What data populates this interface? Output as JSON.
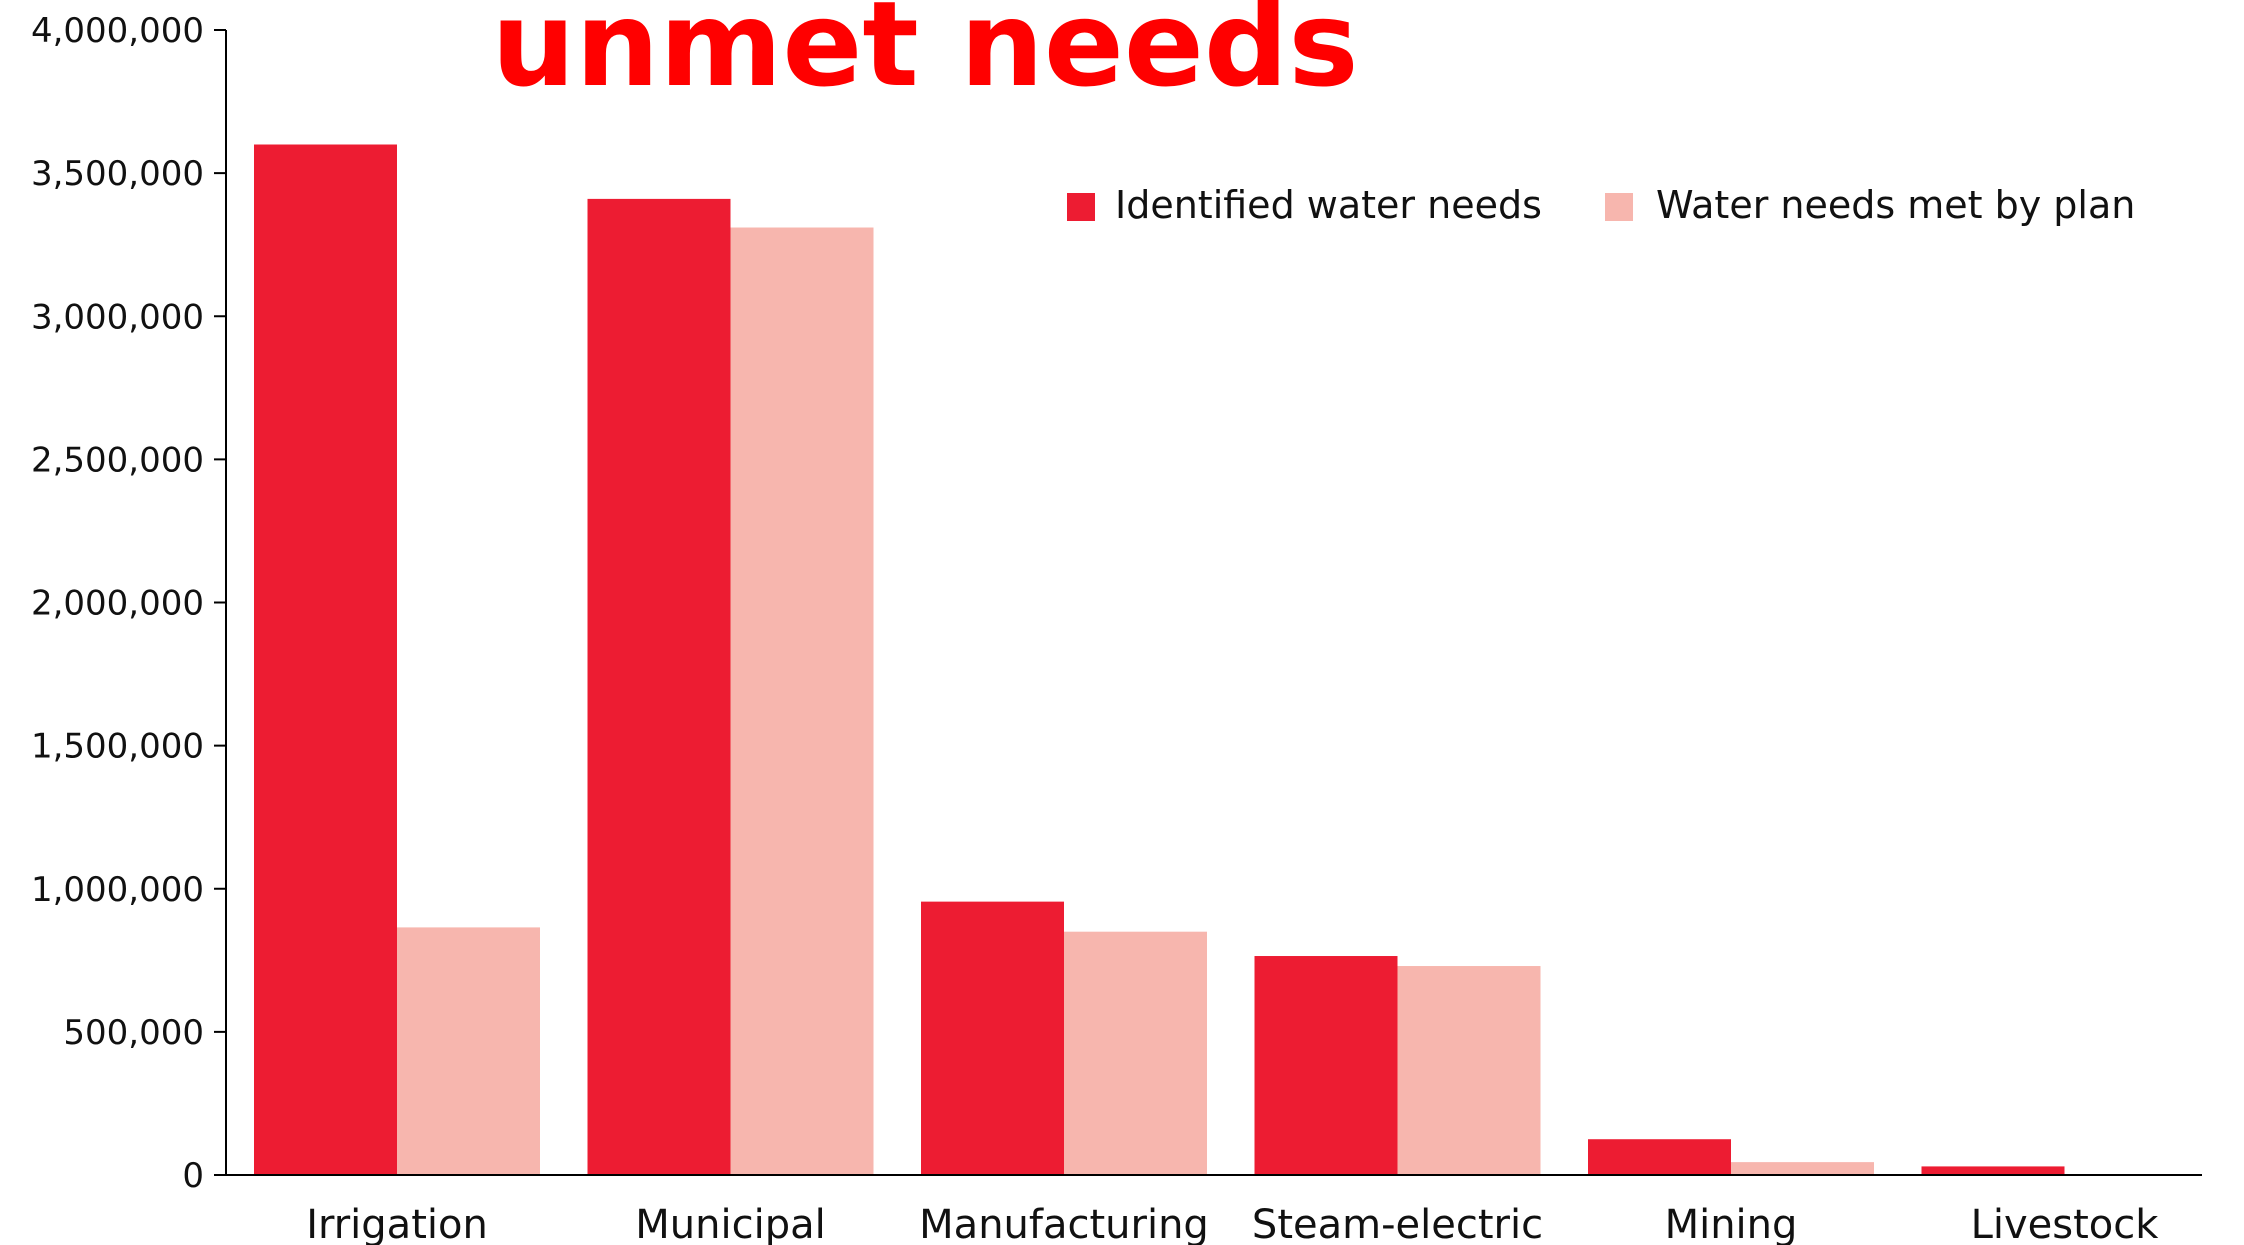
{
  "chart_data": {
    "type": "bar",
    "title": "unmet needs",
    "categories": [
      "Irrigation",
      "Municipal",
      "Manufacturing",
      "Steam-electric",
      "Mining",
      "Livestock"
    ],
    "series": [
      {
        "name": "Identified water needs",
        "color": "#ed1c32",
        "values": [
          3600000,
          3410000,
          955000,
          765000,
          125000,
          30000
        ]
      },
      {
        "name": "Water needs met by plan",
        "color": "#f7b6ae",
        "values": [
          865000,
          3310000,
          850000,
          730000,
          45000,
          0
        ]
      }
    ],
    "ylim": [
      0,
      4000000
    ],
    "yticks": [
      0,
      500000,
      1000000,
      1500000,
      2000000,
      2500000,
      3000000,
      3500000,
      4000000
    ],
    "ytick_labels": [
      "0",
      "500,000",
      "1,000,000",
      "1,500,000",
      "2,000,000",
      "2,500,000",
      "3,000,000",
      "3,500,000",
      "4,000,000"
    ],
    "xlabel": "",
    "ylabel": "",
    "grid": false,
    "legend_position": "top-right"
  }
}
